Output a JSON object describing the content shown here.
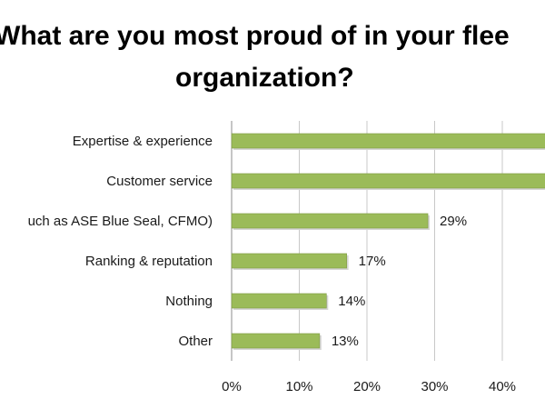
{
  "chart_data": {
    "type": "bar",
    "orientation": "horizontal",
    "title_lines": [
      "What are you most proud of in your flee",
      "organization?"
    ],
    "categories": [
      "Expertise & experience",
      "Customer service",
      "uch as ASE Blue Seal, CFMO)",
      "Ranking & reputation",
      "Nothing",
      "Other"
    ],
    "values": [
      48,
      48,
      29,
      17,
      14,
      13
    ],
    "data_labels": [
      "",
      "",
      "29%",
      "17%",
      "14%",
      "13%"
    ],
    "x_ticks": [
      "0%",
      "10%",
      "20%",
      "30%",
      "40%"
    ],
    "xlim": [
      0,
      50
    ],
    "grid": "vertical",
    "legend": "none",
    "colors": {
      "bar": "#9bbb59",
      "bar_edge": "#7f9a45",
      "grid": "#c8c8c8",
      "axis": "#8c8c8c"
    }
  }
}
